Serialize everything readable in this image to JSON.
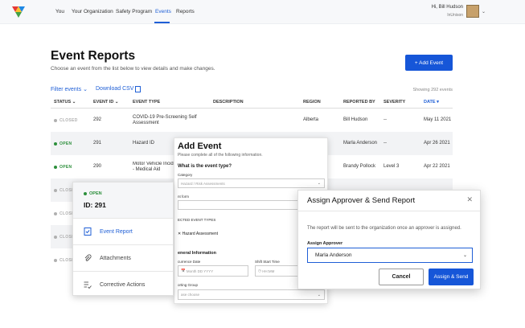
{
  "nav": {
    "links": [
      "You",
      "Your Organization",
      "Safety Program",
      "Events",
      "Reports"
    ],
    "active": "Events",
    "user_greeting": "Hi, Bill Hudson",
    "user_org": "InUnison"
  },
  "page": {
    "title": "Event Reports",
    "subtitle": "Choose an event from the list below to view details and make changes.",
    "add_button": "+ Add Event",
    "filter_label": "Filter events",
    "download_label": "Download CSV",
    "showing": "Showing 292 events"
  },
  "table": {
    "columns": [
      "STATUS",
      "EVENT ID",
      "EVENT TYPE",
      "DESCRIPTION",
      "REGION",
      "REPORTED BY",
      "SEVERITY",
      "DATE"
    ],
    "sorted_column": "DATE",
    "rows": [
      {
        "status": "CLOSED",
        "id": "292",
        "type": "COVID-19 Pre-Screening Self Assessment",
        "description": "",
        "region": "Alberta",
        "reported_by": "Bill Hudson",
        "severity": "--",
        "date": "May 11 2021"
      },
      {
        "status": "OPEN",
        "id": "291",
        "type": "Hazard ID",
        "description": "",
        "region": "",
        "reported_by": "Marla Anderson",
        "severity": "--",
        "date": "Apr 26 2021"
      },
      {
        "status": "OPEN",
        "id": "290",
        "type": "Motor Vehicle Incid - Medical Aid",
        "description": "",
        "region": "",
        "reported_by": "Brandy Pollock",
        "severity": "Level 3",
        "date": "Apr 22 2021"
      },
      {
        "status": "CLOSED",
        "id": "",
        "type": "",
        "description": "",
        "region": "",
        "reported_by": "",
        "severity": "",
        "date": ""
      },
      {
        "status": "CLOSED",
        "id": "",
        "type": "",
        "description": "",
        "region": "",
        "reported_by": "",
        "severity": "",
        "date": ""
      },
      {
        "status": "CLOSED",
        "id": "",
        "type": "",
        "description": "",
        "region": "",
        "reported_by": "",
        "severity": "",
        "date": ""
      },
      {
        "status": "CLOSED",
        "id": "",
        "type": "",
        "description": "",
        "region": "",
        "reported_by": "",
        "severity": "",
        "date": ""
      }
    ]
  },
  "add_event": {
    "title": "Add Event",
    "subtitle": "Please complete all of the following information.",
    "question": "What is the event type?",
    "category_label": "Category",
    "category_value": "Hazard / Risk Assessments",
    "form_label": "nt form",
    "event_types_label": "ECTED EVENT TYPES",
    "event_type_value": "Hazard Assessment",
    "section": "eneral Information",
    "occurrence_label": "currence Date",
    "date_placeholder": "Month DD YYYY",
    "shift_label": "Shift Start Time",
    "time_placeholder": "HH:MM",
    "group_label": "orting Group",
    "group_placeholder": "ase choose"
  },
  "detail": {
    "status": "OPEN",
    "id": "ID: 291",
    "items": [
      "Event Report",
      "Attachments",
      "Corrective Actions"
    ],
    "active_item": "Event Report"
  },
  "assign_modal": {
    "title": "Assign Approver & Send Report",
    "message": "The report will be sent to the organization once an approver is assigned.",
    "label": "Assign Approver",
    "selected": "Marla Anderson",
    "cancel": "Cancel",
    "confirm": "Assign & Send"
  },
  "colors": {
    "primary": "#1656d8",
    "link": "#1f5fd6",
    "open": "#2c8f3b",
    "closed": "#b0b0b0"
  }
}
